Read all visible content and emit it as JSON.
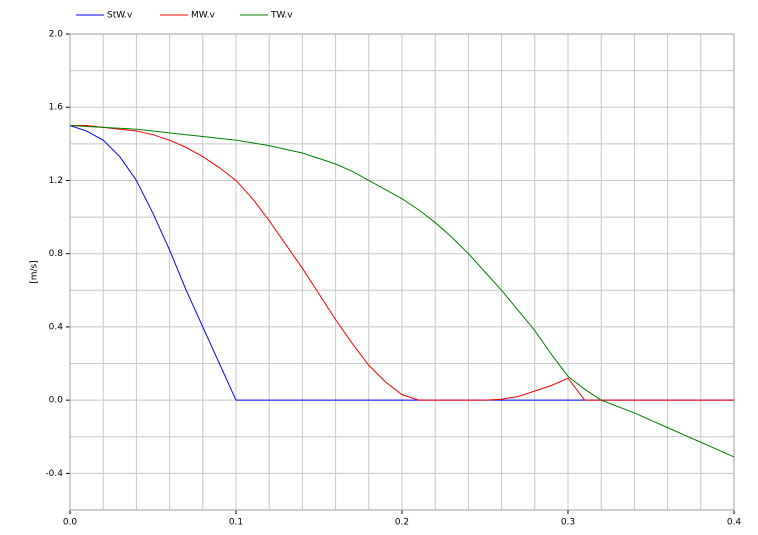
{
  "chart_data": {
    "type": "line",
    "y_label": "[m/s]",
    "x": [
      0,
      0.01,
      0.02,
      0.03,
      0.04,
      0.05,
      0.06,
      0.07,
      0.08,
      0.09,
      0.1,
      0.11,
      0.12,
      0.13,
      0.14,
      0.15,
      0.16,
      0.17,
      0.18,
      0.19,
      0.2,
      0.21,
      0.22,
      0.23,
      0.24,
      0.25,
      0.26,
      0.27,
      0.28,
      0.29,
      0.3,
      0.31,
      0.32,
      0.33,
      0.34,
      0.35,
      0.36,
      0.37,
      0.38,
      0.39,
      0.4
    ],
    "series": [
      {
        "name": "StW.v",
        "color": "#0000ff",
        "values": [
          1.5,
          1.47,
          1.42,
          1.33,
          1.2,
          1.02,
          0.82,
          0.6,
          0.4,
          0.2,
          0,
          0,
          0,
          0,
          0,
          0,
          0,
          0,
          0,
          0,
          0,
          0,
          0,
          0,
          0,
          0,
          0,
          0,
          0,
          0,
          0,
          0,
          0,
          0,
          0,
          0,
          0,
          0,
          0,
          0,
          0
        ]
      },
      {
        "name": "MW.v",
        "color": "#ff0000",
        "values": [
          1.5,
          1.5,
          1.49,
          1.48,
          1.47,
          1.45,
          1.42,
          1.38,
          1.33,
          1.27,
          1.2,
          1.1,
          0.98,
          0.85,
          0.72,
          0.58,
          0.44,
          0.31,
          0.19,
          0.1,
          0.03,
          0,
          0,
          0,
          0,
          0,
          0.005,
          0.02,
          0.05,
          0.08,
          0.12,
          0,
          0,
          0,
          0,
          0,
          0,
          0,
          0,
          0,
          0
        ]
      },
      {
        "name": "TW.v",
        "color": "#008000",
        "values": [
          1.5,
          1.495,
          1.49,
          1.485,
          1.48,
          1.47,
          1.46,
          1.45,
          1.44,
          1.43,
          1.42,
          1.405,
          1.39,
          1.37,
          1.35,
          1.32,
          1.29,
          1.25,
          1.2,
          1.15,
          1.1,
          1.04,
          0.97,
          0.89,
          0.8,
          0.7,
          0.6,
          0.49,
          0.38,
          0.25,
          0.13,
          0.06,
          0,
          -0.035,
          -0.07,
          -0.11,
          -0.15,
          -0.19,
          -0.23,
          -0.27,
          -0.31
        ]
      }
    ],
    "xlim": [
      0,
      0.4
    ],
    "ylim": [
      -0.6,
      2.0
    ],
    "xticks": [
      {
        "value": 0,
        "label": "0.0"
      },
      0.1,
      0.2,
      0.3,
      0.4
    ],
    "yticks": [
      {
        "value": 2,
        "label": "2.0"
      },
      1.6,
      1.2,
      0.8,
      0.4,
      {
        "value": 0,
        "label": "0.0"
      },
      -0.4
    ],
    "x_minor_ticks": [
      0.02,
      0.04,
      0.06,
      0.08,
      0.12,
      0.14,
      0.16,
      0.18,
      0.22,
      0.24,
      0.26,
      0.28,
      0.32,
      0.34,
      0.36,
      0.38
    ],
    "y_minor_ticks": [
      -0.6,
      -0.2,
      0.2,
      0.6,
      1.0,
      1.4,
      1.8
    ],
    "grid": true,
    "legend": "top"
  }
}
